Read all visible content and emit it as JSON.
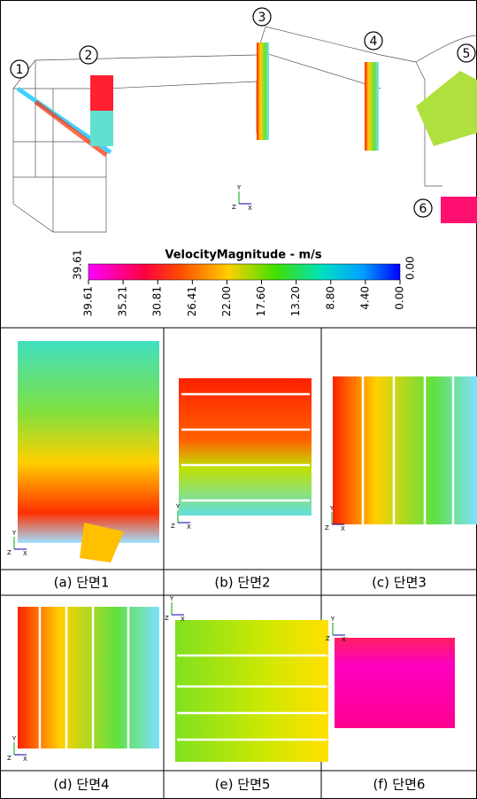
{
  "overview": {
    "section_markers": [
      "1",
      "2",
      "3",
      "4",
      "5",
      "6"
    ],
    "colorbar": {
      "title": "VelocityMagnitude - m/s",
      "max_label": "39.61",
      "min_label": "0.00",
      "ticks": [
        "39.61",
        "35.21",
        "30.81",
        "26.41",
        "22.00",
        "17.60",
        "13.20",
        "8.80",
        "4.40",
        "0.00"
      ]
    }
  },
  "axis_labels": {
    "x": "X",
    "y": "Y",
    "z": "Z"
  },
  "panels": [
    {
      "caption": "(a) 단면1"
    },
    {
      "caption": "(b) 단면2"
    },
    {
      "caption": "(c) 단면3"
    },
    {
      "caption": "(d) 단면4"
    },
    {
      "caption": "(e) 단면5"
    },
    {
      "caption": "(f) 단면6"
    }
  ]
}
